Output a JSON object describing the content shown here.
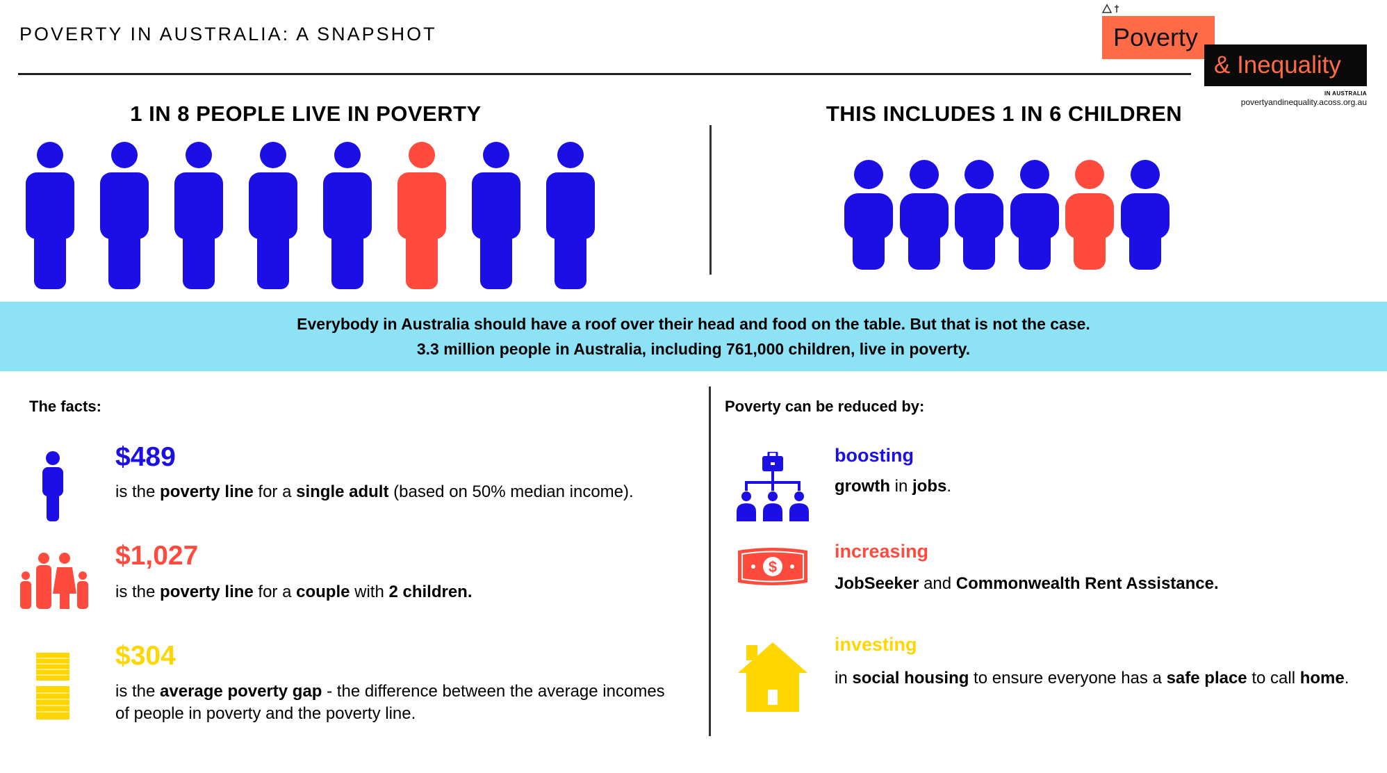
{
  "header": {
    "title": "POVERTY IN AUSTRALIA: A SNAPSHOT"
  },
  "logo": {
    "poverty": "Poverty",
    "inequality": "& Inequality",
    "sub": "IN AUSTRALIA",
    "url": "povertyandinequality.acoss.org.au"
  },
  "colors": {
    "blue": "#1c0fe6",
    "red": "#ff4b3e",
    "yellow": "#ffd600",
    "banner": "#8ee2f6",
    "logo_orange": "#ff6b47"
  },
  "adults": {
    "heading": "1 IN 8 PEOPLE LIVE IN POVERTY",
    "total": 8,
    "highlighted_index": 5
  },
  "children": {
    "heading": "THIS INCLUDES 1 IN 6 CHILDREN",
    "total": 6,
    "highlighted_index": 4
  },
  "banner": {
    "line1": "Everybody in Australia should have a roof over their head and food on the table. But that is not the case.",
    "line2": "3.3 million people in Australia, including 761,000 children, live in poverty."
  },
  "facts": {
    "heading": "The facts:",
    "items": [
      {
        "value": "$489",
        "icon": "single-adult-icon",
        "p1": "is the ",
        "b1": "poverty line",
        "p2": " for a ",
        "b2": "single adult",
        "p3": " (based on 50% median income)."
      },
      {
        "value": "$1,027",
        "icon": "family-icon",
        "p1": "is the ",
        "b1": "poverty line",
        "p2": " for a ",
        "b2": "couple",
        "p3": " with ",
        "b3": "2 children."
      },
      {
        "value": "$304",
        "icon": "coin-stack-icon",
        "p1": "is the ",
        "b1": "average poverty gap",
        "p2": " - the difference between the average incomes of people in poverty and the poverty line."
      }
    ]
  },
  "reduce": {
    "heading": "Poverty can be reduced by:",
    "items": [
      {
        "word": "boosting",
        "icon": "employment-network-icon",
        "b1": "growth",
        "p1": " in ",
        "b2": "jobs",
        "p2": "."
      },
      {
        "word": "increasing",
        "icon": "dollar-banknote-icon",
        "b1": "JobSeeker",
        "p1": " and ",
        "b2": "Commonwealth Rent Assistance."
      },
      {
        "word": "investing",
        "icon": "house-icon",
        "p1": "in ",
        "b1": "social housing",
        "p2": " to ensure everyone has a ",
        "b2": "safe place",
        "p3": " to call ",
        "b3": "home",
        "p4": "."
      }
    ]
  }
}
